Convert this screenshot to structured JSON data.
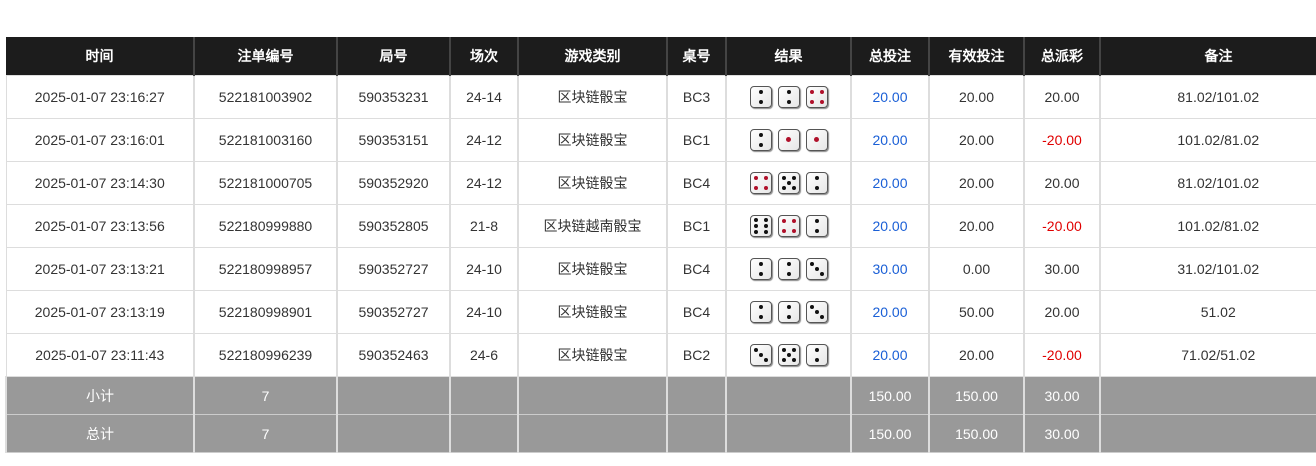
{
  "headers": [
    "时间",
    "注单编号",
    "局号",
    "场次",
    "游戏类别",
    "桌号",
    "结果",
    "总投注",
    "有效投注",
    "总派彩",
    "备注"
  ],
  "rows": [
    {
      "time": "2025-01-07 23:16:27",
      "bet_id": "522181003902",
      "round": "590353231",
      "session": "24-14",
      "game": "区块链骰宝",
      "table": "BC3",
      "dice": [
        2,
        2,
        4
      ],
      "total_bet": "20.00",
      "valid_bet": "20.00",
      "payout": "20.00",
      "payout_negative": false,
      "remark": "81.02/101.02"
    },
    {
      "time": "2025-01-07 23:16:01",
      "bet_id": "522181003160",
      "round": "590353151",
      "session": "24-12",
      "game": "区块链骰宝",
      "table": "BC1",
      "dice": [
        2,
        1,
        1
      ],
      "total_bet": "20.00",
      "valid_bet": "20.00",
      "payout": "-20.00",
      "payout_negative": true,
      "remark": "101.02/81.02"
    },
    {
      "time": "2025-01-07 23:14:30",
      "bet_id": "522181000705",
      "round": "590352920",
      "session": "24-12",
      "game": "区块链骰宝",
      "table": "BC4",
      "dice": [
        4,
        5,
        2
      ],
      "total_bet": "20.00",
      "valid_bet": "20.00",
      "payout": "20.00",
      "payout_negative": false,
      "remark": "81.02/101.02"
    },
    {
      "time": "2025-01-07 23:13:56",
      "bet_id": "522180999880",
      "round": "590352805",
      "session": "21-8",
      "game": "区块链越南骰宝",
      "table": "BC1",
      "dice": [
        6,
        4,
        2
      ],
      "total_bet": "20.00",
      "valid_bet": "20.00",
      "payout": "-20.00",
      "payout_negative": true,
      "remark": "101.02/81.02"
    },
    {
      "time": "2025-01-07 23:13:21",
      "bet_id": "522180998957",
      "round": "590352727",
      "session": "24-10",
      "game": "区块链骰宝",
      "table": "BC4",
      "dice": [
        2,
        2,
        3
      ],
      "total_bet": "30.00",
      "valid_bet": "0.00",
      "payout": "30.00",
      "payout_negative": false,
      "remark": "31.02/101.02"
    },
    {
      "time": "2025-01-07 23:13:19",
      "bet_id": "522180998901",
      "round": "590352727",
      "session": "24-10",
      "game": "区块链骰宝",
      "table": "BC4",
      "dice": [
        2,
        2,
        3
      ],
      "total_bet": "20.00",
      "valid_bet": "50.00",
      "payout": "20.00",
      "payout_negative": false,
      "remark": "51.02"
    },
    {
      "time": "2025-01-07 23:11:43",
      "bet_id": "522180996239",
      "round": "590352463",
      "session": "24-6",
      "game": "区块链骰宝",
      "table": "BC2",
      "dice": [
        3,
        5,
        2
      ],
      "total_bet": "20.00",
      "valid_bet": "20.00",
      "payout": "-20.00",
      "payout_negative": true,
      "remark": "71.02/51.02"
    }
  ],
  "subtotal": {
    "label": "小计",
    "count": "7",
    "total_bet": "150.00",
    "valid_bet": "150.00",
    "payout": "30.00"
  },
  "grandtotal": {
    "label": "总计",
    "count": "7",
    "total_bet": "150.00",
    "valid_bet": "150.00",
    "payout": "30.00"
  },
  "colors": {
    "header_bg": "#1c1c1c",
    "footer_bg": "#999999",
    "bet_blue": "#1a5fd6",
    "negative_red": "#e00000",
    "red_pip": "#b0102a"
  }
}
